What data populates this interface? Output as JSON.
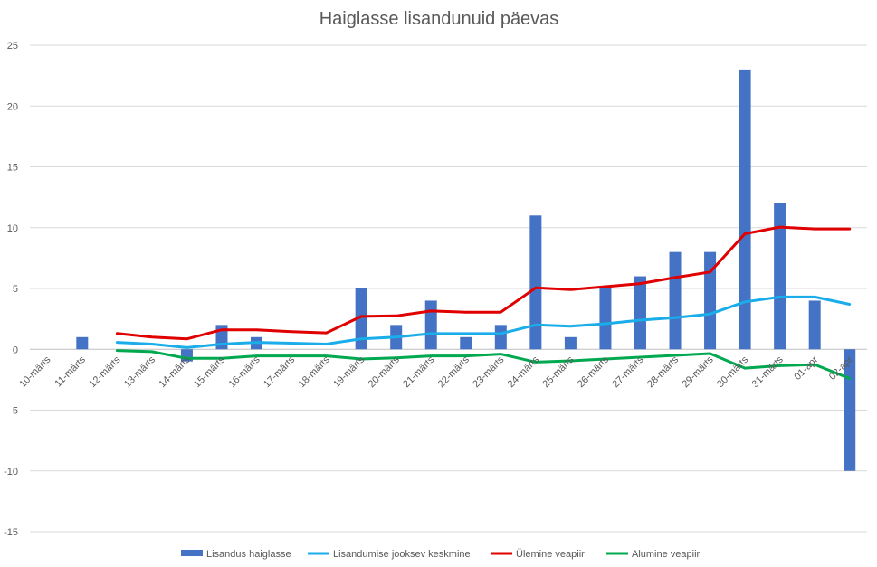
{
  "chart_data": {
    "type": "bar",
    "title": "Haiglasse lisandunuid päevas",
    "xlabel": "",
    "ylabel": "",
    "ylim": [
      -15,
      25
    ],
    "yticks": [
      25,
      20,
      15,
      10,
      5,
      0,
      -5,
      -10,
      -15
    ],
    "grid": true,
    "legend_position": "bottom",
    "categories": [
      "10-märts",
      "11-märts",
      "12-märts",
      "13-märts",
      "14-märts",
      "15-märts",
      "16-märts",
      "17-märts",
      "18-märts",
      "19-märts",
      "20-märts",
      "21-märts",
      "22-märts",
      "23-märts",
      "24-märts",
      "25-märts",
      "26-märts",
      "27-märts",
      "28-märts",
      "29-märts",
      "30-märts",
      "31-märts",
      "01-apr",
      "02-apr"
    ],
    "series": [
      {
        "name": "Lisandus haiglasse",
        "type": "bar",
        "color": "#4472C4",
        "values": [
          0,
          1,
          0,
          0,
          -1,
          2,
          1,
          0,
          0,
          5,
          2,
          4,
          1,
          2,
          11,
          1,
          5,
          6,
          8,
          8,
          23,
          12,
          4,
          -10
        ]
      },
      {
        "name": "Lisandumise jooksev keskmine",
        "type": "line",
        "color": "#1AADE9",
        "values": [
          null,
          null,
          0.57,
          0.43,
          0.14,
          0.43,
          0.57,
          0.5,
          0.43,
          0.86,
          1.0,
          1.29,
          1.29,
          1.29,
          2.0,
          1.9,
          2.1,
          2.4,
          2.6,
          2.9,
          3.9,
          4.3,
          4.3,
          3.7
        ]
      },
      {
        "name": "Ülemine veapiir",
        "type": "line",
        "color": "#E00000",
        "values": [
          null,
          null,
          1.3,
          1.0,
          0.85,
          1.6,
          1.6,
          1.45,
          1.35,
          2.7,
          2.75,
          3.15,
          3.05,
          3.05,
          5.05,
          4.9,
          5.15,
          5.4,
          5.9,
          6.35,
          9.5,
          10.05,
          9.9,
          9.9
        ]
      },
      {
        "name": "Alumine veapiir",
        "type": "line",
        "color": "#00A84F",
        "values": [
          null,
          null,
          -0.1,
          -0.2,
          -0.75,
          -0.75,
          -0.55,
          -0.55,
          -0.55,
          -0.8,
          -0.7,
          -0.55,
          -0.55,
          -0.4,
          -1.05,
          -0.95,
          -0.8,
          -0.65,
          -0.5,
          -0.35,
          -1.55,
          -1.35,
          -1.25,
          -2.4
        ]
      }
    ]
  }
}
